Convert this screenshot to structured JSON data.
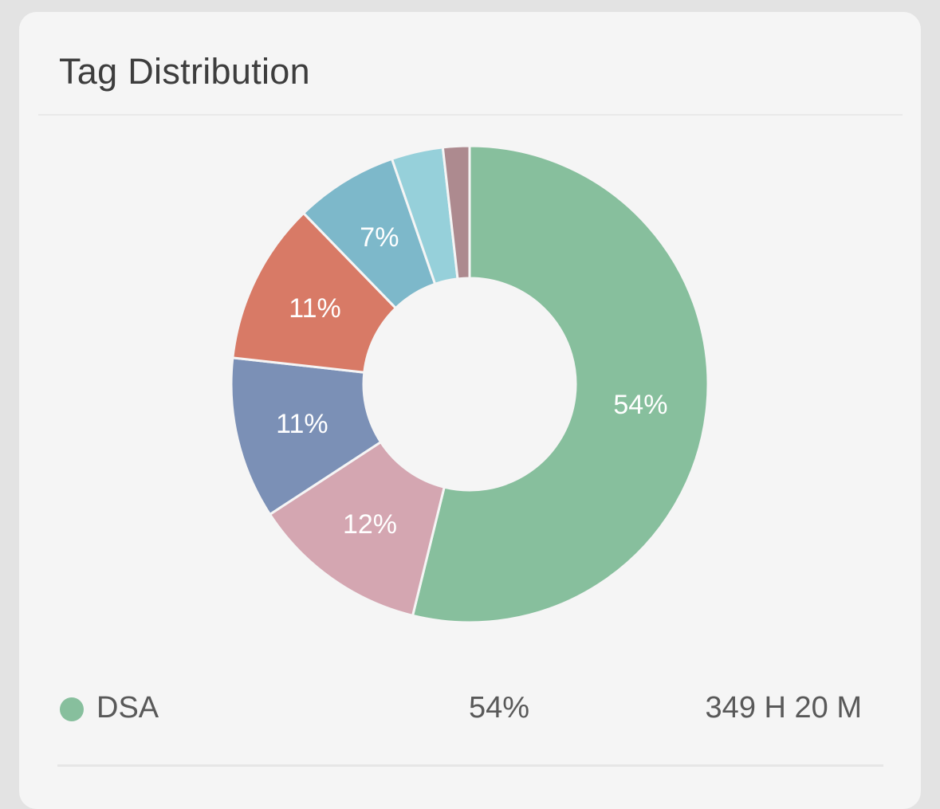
{
  "card": {
    "title": "Tag Distribution"
  },
  "chart_data": {
    "type": "pie",
    "donut": true,
    "slices": [
      {
        "value": 54,
        "label": "54%",
        "color": "#87bf9d"
      },
      {
        "value": 12,
        "label": "12%",
        "color": "#d4a6b1"
      },
      {
        "value": 11,
        "label": "11%",
        "color": "#7b90b6"
      },
      {
        "value": 11,
        "label": "11%",
        "color": "#d87a66"
      },
      {
        "value": 7,
        "label": "7%",
        "color": "#7db8ca"
      },
      {
        "value": 3.5,
        "label": "",
        "color": "#96d0da"
      },
      {
        "value": 1.8,
        "label": "",
        "color": "#ad8a8f"
      }
    ]
  },
  "legend": {
    "items": [
      {
        "name": "DSA",
        "percent": "54%",
        "duration": "349 H 20 M",
        "color": "#87bf9d"
      }
    ]
  }
}
